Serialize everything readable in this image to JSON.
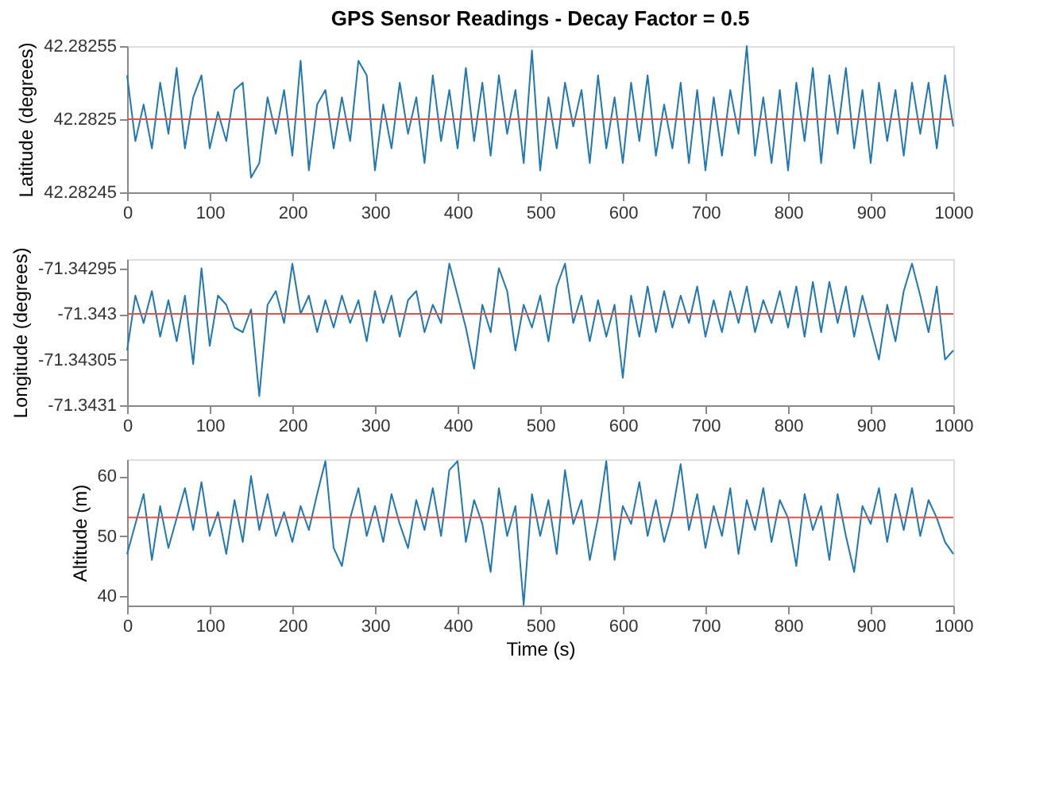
{
  "chart_data": [
    {
      "type": "line",
      "title": "GPS Sensor Readings - Decay Factor = 0.5",
      "ylabel": "Latitude (degrees)",
      "grid": false,
      "x": [
        0,
        10,
        20,
        30,
        40,
        50,
        60,
        70,
        80,
        90,
        100,
        110,
        120,
        130,
        140,
        150,
        160,
        170,
        180,
        190,
        200,
        210,
        220,
        230,
        240,
        250,
        260,
        270,
        280,
        290,
        300,
        310,
        320,
        330,
        340,
        350,
        360,
        370,
        380,
        390,
        400,
        410,
        420,
        430,
        440,
        450,
        460,
        470,
        480,
        490,
        500,
        510,
        520,
        530,
        540,
        550,
        560,
        570,
        580,
        590,
        600,
        610,
        620,
        630,
        640,
        650,
        660,
        670,
        680,
        690,
        700,
        710,
        720,
        730,
        740,
        750,
        760,
        770,
        780,
        790,
        800,
        810,
        820,
        830,
        840,
        850,
        860,
        870,
        880,
        890,
        900,
        910,
        920,
        930,
        940,
        950,
        960,
        970,
        980,
        990,
        1000
      ],
      "series": [
        {
          "color": "#1f77b4",
          "values": [
            42.28253,
            42.282485,
            42.28251,
            42.28248,
            42.282525,
            42.28249,
            42.282535,
            42.28248,
            42.282515,
            42.28253,
            42.28248,
            42.282505,
            42.282485,
            42.28252,
            42.282525,
            42.28246,
            42.28247,
            42.282515,
            42.28249,
            42.28252,
            42.282475,
            42.28254,
            42.282465,
            42.28251,
            42.28252,
            42.28248,
            42.282515,
            42.282485,
            42.28254,
            42.28253,
            42.282465,
            42.28251,
            42.28248,
            42.282525,
            42.28249,
            42.282515,
            42.28247,
            42.28253,
            42.282485,
            42.28252,
            42.28248,
            42.282535,
            42.282485,
            42.282525,
            42.282475,
            42.28253,
            42.28249,
            42.28252,
            42.28247,
            42.282547,
            42.282465,
            42.282515,
            42.28248,
            42.282525,
            42.282495,
            42.28252,
            42.28247,
            42.28253,
            42.28248,
            42.282515,
            42.28247,
            42.282525,
            42.282485,
            42.28253,
            42.282475,
            42.28251,
            42.28248,
            42.282525,
            42.28247,
            42.28252,
            42.282465,
            42.282515,
            42.282475,
            42.28252,
            42.28249,
            42.28255,
            42.282475,
            42.282515,
            42.28247,
            42.28252,
            42.282465,
            42.282525,
            42.282485,
            42.282535,
            42.28247,
            42.28253,
            42.28249,
            42.282535,
            42.28248,
            42.28252,
            42.28247,
            42.282525,
            42.282485,
            42.28252,
            42.282475,
            42.282525,
            42.28249,
            42.282525,
            42.28248,
            42.28253,
            42.282495
          ]
        }
      ],
      "xlim": [
        0,
        1000
      ],
      "xticks": [
        0,
        100,
        200,
        300,
        400,
        500,
        600,
        700,
        800,
        900,
        1000
      ],
      "ylim": [
        42.28245,
        42.28255
      ],
      "yticks": [
        42.28245,
        42.2825,
        42.28255
      ],
      "ref_lines": [
        {
          "axis": "y",
          "value": 42.2825,
          "color": "#d9534f"
        }
      ]
    },
    {
      "type": "line",
      "ylabel": "Longitude (degrees)",
      "grid": false,
      "x": [
        0,
        10,
        20,
        30,
        40,
        50,
        60,
        70,
        80,
        90,
        100,
        110,
        120,
        130,
        140,
        150,
        160,
        170,
        180,
        190,
        200,
        210,
        220,
        230,
        240,
        250,
        260,
        270,
        280,
        290,
        300,
        310,
        320,
        330,
        340,
        350,
        360,
        370,
        380,
        390,
        400,
        410,
        420,
        430,
        440,
        450,
        460,
        470,
        480,
        490,
        500,
        510,
        520,
        530,
        540,
        550,
        560,
        570,
        580,
        590,
        600,
        610,
        620,
        630,
        640,
        650,
        660,
        670,
        680,
        690,
        700,
        710,
        720,
        730,
        740,
        750,
        760,
        770,
        780,
        790,
        800,
        810,
        820,
        830,
        840,
        850,
        860,
        870,
        880,
        890,
        900,
        910,
        920,
        930,
        940,
        950,
        960,
        970,
        980,
        990,
        1000
      ],
      "series": [
        {
          "color": "#1f77b4",
          "values": [
            -71.34304,
            -71.34298,
            -71.34301,
            -71.342975,
            -71.343025,
            -71.342985,
            -71.34303,
            -71.34298,
            -71.343055,
            -71.34295,
            -71.343035,
            -71.34298,
            -71.34299,
            -71.343015,
            -71.34302,
            -71.342995,
            -71.34309,
            -71.34299,
            -71.342975,
            -71.34301,
            -71.342945,
            -71.343,
            -71.34298,
            -71.34302,
            -71.342985,
            -71.343015,
            -71.34298,
            -71.34301,
            -71.342985,
            -71.34303,
            -71.342975,
            -71.34301,
            -71.34298,
            -71.343025,
            -71.342985,
            -71.342975,
            -71.34302,
            -71.34299,
            -71.34301,
            -71.342945,
            -71.34298,
            -71.343015,
            -71.34306,
            -71.34299,
            -71.34302,
            -71.34295,
            -71.342975,
            -71.34304,
            -71.34299,
            -71.343015,
            -71.34298,
            -71.34303,
            -71.34297,
            -71.342945,
            -71.34301,
            -71.34298,
            -71.34303,
            -71.342985,
            -71.343025,
            -71.34299,
            -71.34307,
            -71.34298,
            -71.343025,
            -71.34297,
            -71.34302,
            -71.342975,
            -71.343015,
            -71.34298,
            -71.34301,
            -71.34297,
            -71.343025,
            -71.342985,
            -71.34302,
            -71.342975,
            -71.34301,
            -71.34297,
            -71.34302,
            -71.342985,
            -71.34301,
            -71.342975,
            -71.343015,
            -71.34297,
            -71.343025,
            -71.342965,
            -71.34302,
            -71.342965,
            -71.34301,
            -71.34297,
            -71.343025,
            -71.34298,
            -71.343015,
            -71.34305,
            -71.34299,
            -71.34303,
            -71.342975,
            -71.342945,
            -71.34298,
            -71.34302,
            -71.34297,
            -71.34305,
            -71.34304
          ]
        }
      ],
      "xlim": [
        0,
        1000
      ],
      "xticks": [
        0,
        100,
        200,
        300,
        400,
        500,
        600,
        700,
        800,
        900,
        1000
      ],
      "ylim": [
        -71.3431,
        -71.34294
      ],
      "yticks": [
        -71.3431,
        -71.34305,
        -71.343,
        -71.34295
      ],
      "ref_lines": [
        {
          "axis": "y",
          "value": -71.343,
          "color": "#d9534f"
        }
      ]
    },
    {
      "type": "line",
      "xlabel": "Time (s)",
      "ylabel": "Altitude (m)",
      "grid": false,
      "x": [
        0,
        10,
        20,
        30,
        40,
        50,
        60,
        70,
        80,
        90,
        100,
        110,
        120,
        130,
        140,
        150,
        160,
        170,
        180,
        190,
        200,
        210,
        220,
        230,
        240,
        250,
        260,
        270,
        280,
        290,
        300,
        310,
        320,
        330,
        340,
        350,
        360,
        370,
        380,
        390,
        400,
        410,
        420,
        430,
        440,
        450,
        460,
        470,
        480,
        490,
        500,
        510,
        520,
        530,
        540,
        550,
        560,
        570,
        580,
        590,
        600,
        610,
        620,
        630,
        640,
        650,
        660,
        670,
        680,
        690,
        700,
        710,
        720,
        730,
        740,
        750,
        760,
        770,
        780,
        790,
        800,
        810,
        820,
        830,
        840,
        850,
        860,
        870,
        880,
        890,
        900,
        910,
        920,
        930,
        940,
        950,
        960,
        970,
        980,
        990,
        1000
      ],
      "series": [
        {
          "color": "#1f77b4",
          "values": [
            47,
            52,
            57,
            46,
            55,
            48,
            53,
            58,
            51,
            59,
            50,
            54,
            47,
            56,
            49,
            60,
            51,
            57,
            50,
            54,
            49,
            55,
            51,
            57,
            62.5,
            48,
            45,
            53,
            58,
            50,
            55,
            49,
            57,
            52,
            48,
            56,
            51,
            58,
            50,
            61,
            62.5,
            49,
            56,
            52,
            44,
            58,
            50,
            55,
            38.5,
            57,
            50,
            56,
            47,
            61,
            52,
            56,
            46,
            53,
            62.5,
            46,
            55,
            52,
            59,
            50,
            56,
            49,
            54,
            62,
            51,
            57,
            48,
            55,
            50,
            58,
            47,
            56,
            51,
            58,
            49,
            56,
            53,
            45,
            57,
            51,
            55,
            46,
            57,
            50,
            44,
            55,
            52,
            58,
            49,
            57,
            51,
            58,
            50,
            56,
            53,
            49,
            47
          ]
        }
      ],
      "xlim": [
        0,
        1000
      ],
      "xticks": [
        0,
        100,
        200,
        300,
        400,
        500,
        600,
        700,
        800,
        900,
        1000
      ],
      "ylim": [
        38.4,
        62.8
      ],
      "yticks": [
        40,
        50,
        60
      ],
      "ref_lines": [
        {
          "axis": "y",
          "value": 53.1,
          "color": "#d9534f"
        }
      ]
    }
  ]
}
